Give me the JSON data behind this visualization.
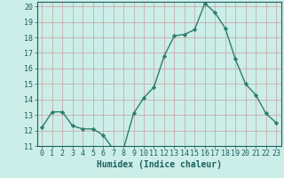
{
  "x": [
    0,
    1,
    2,
    3,
    4,
    5,
    6,
    7,
    8,
    9,
    10,
    11,
    12,
    13,
    14,
    15,
    16,
    17,
    18,
    19,
    20,
    21,
    22,
    23
  ],
  "y": [
    12.2,
    13.2,
    13.2,
    12.3,
    12.1,
    12.1,
    11.7,
    10.8,
    10.8,
    13.1,
    14.1,
    14.8,
    16.8,
    18.1,
    18.2,
    18.5,
    20.2,
    19.6,
    18.6,
    16.6,
    15.0,
    14.3,
    13.1,
    12.5
  ],
  "line_color": "#2d7d6e",
  "marker": "D",
  "marker_size": 2.2,
  "bg_color": "#cceee8",
  "grid_color": "#c8a0a0",
  "xlabel": "Humidex (Indice chaleur)",
  "ylim": [
    11,
    20
  ],
  "xlim": [
    -0.5,
    23.5
  ],
  "yticks": [
    11,
    12,
    13,
    14,
    15,
    16,
    17,
    18,
    19,
    20
  ],
  "xticks": [
    0,
    1,
    2,
    3,
    4,
    5,
    6,
    7,
    8,
    9,
    10,
    11,
    12,
    13,
    14,
    15,
    16,
    17,
    18,
    19,
    20,
    21,
    22,
    23
  ],
  "font_color": "#1a6060",
  "label_fontsize": 7,
  "tick_fontsize": 6,
  "linewidth": 1.0
}
